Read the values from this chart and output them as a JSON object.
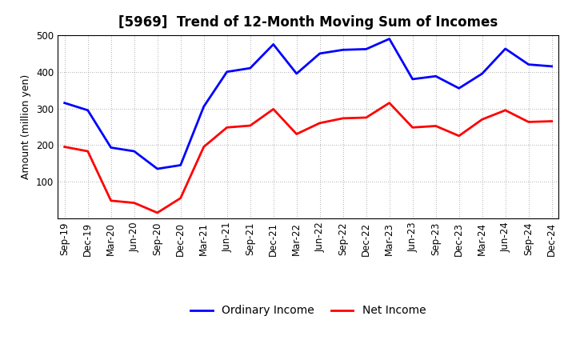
{
  "title": "[5969]  Trend of 12-Month Moving Sum of Incomes",
  "ylabel": "Amount (million yen)",
  "ylim": [
    0,
    500
  ],
  "yticks": [
    100,
    200,
    300,
    400,
    500
  ],
  "x_labels": [
    "Sep-19",
    "Dec-19",
    "Mar-20",
    "Jun-20",
    "Sep-20",
    "Dec-20",
    "Mar-21",
    "Jun-21",
    "Sep-21",
    "Dec-21",
    "Mar-22",
    "Jun-22",
    "Sep-22",
    "Dec-22",
    "Mar-23",
    "Jun-23",
    "Sep-23",
    "Dec-23",
    "Mar-24",
    "Jun-24",
    "Sep-24",
    "Dec-24"
  ],
  "ordinary_income": [
    315,
    295,
    193,
    183,
    135,
    145,
    305,
    400,
    410,
    475,
    395,
    450,
    460,
    462,
    490,
    380,
    388,
    355,
    395,
    463,
    420,
    415
  ],
  "net_income": [
    195,
    183,
    48,
    42,
    15,
    55,
    195,
    248,
    253,
    298,
    230,
    260,
    273,
    275,
    315,
    248,
    252,
    225,
    270,
    295,
    263,
    265
  ],
  "ordinary_color": "#0000FF",
  "net_color": "#FF0000",
  "background_color": "#FFFFFF",
  "grid_color": "#999999",
  "title_fontsize": 12,
  "axis_fontsize": 9,
  "tick_fontsize": 8.5,
  "legend_fontsize": 10,
  "line_width": 2.0
}
